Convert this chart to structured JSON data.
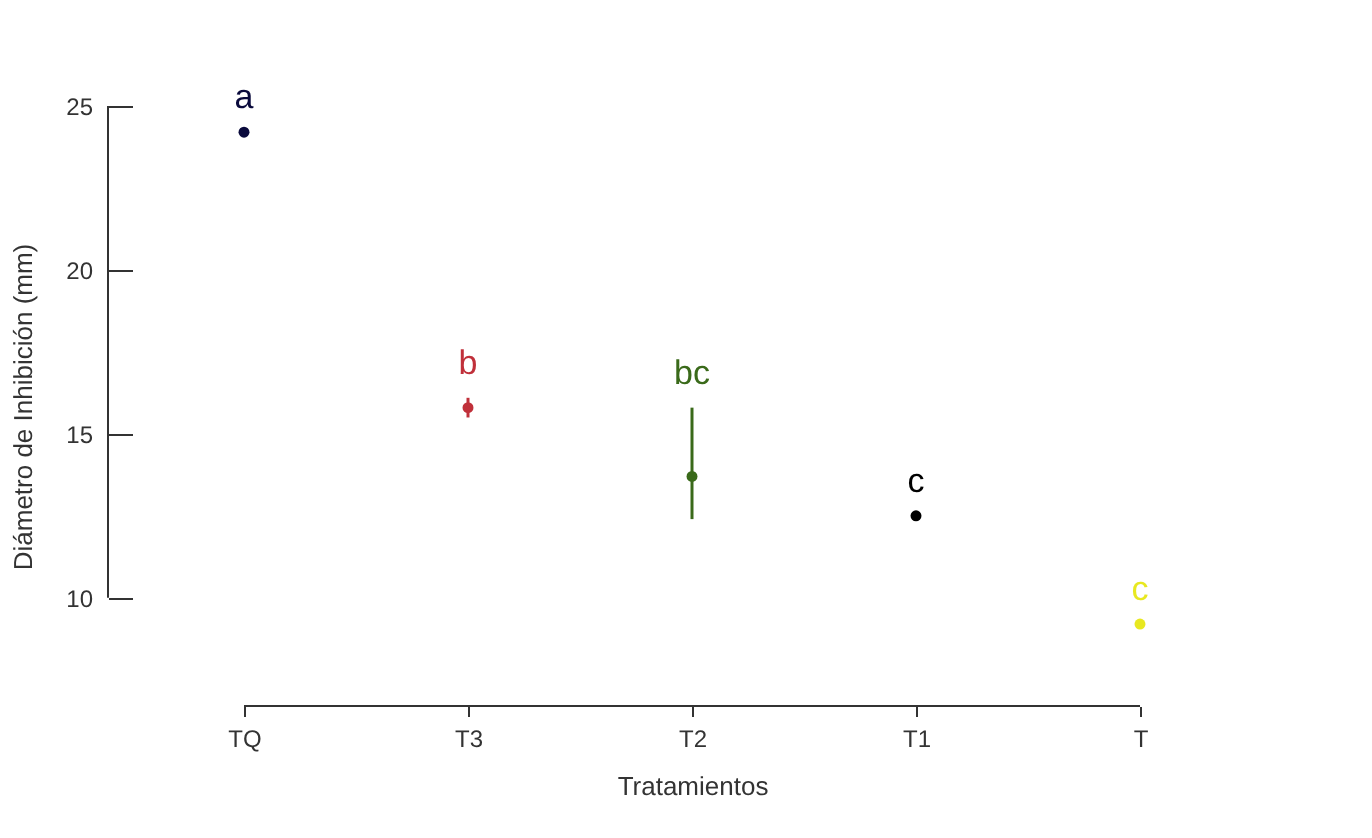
{
  "chart_data": {
    "type": "scatter",
    "xlabel": "Tratamientos",
    "ylabel": "Diámetro de Inhibición (mm)",
    "categories": [
      "TQ",
      "T3",
      "T2",
      "T1",
      "T"
    ],
    "values": [
      24.2,
      15.8,
      13.7,
      12.5,
      9.2
    ],
    "colors": [
      "#0a0a3c",
      "#c0303a",
      "#3a6a1a",
      "#000000",
      "#e8e820"
    ],
    "errors": [
      null,
      0.3,
      [
        12.4,
        15.8
      ],
      null,
      null
    ],
    "annotations": [
      "a",
      "b",
      "bc",
      "c",
      "c"
    ],
    "ylim": [
      6.7,
      25
    ],
    "yticks": [
      10,
      15,
      20,
      25
    ],
    "grid": false,
    "marker": "circle"
  }
}
